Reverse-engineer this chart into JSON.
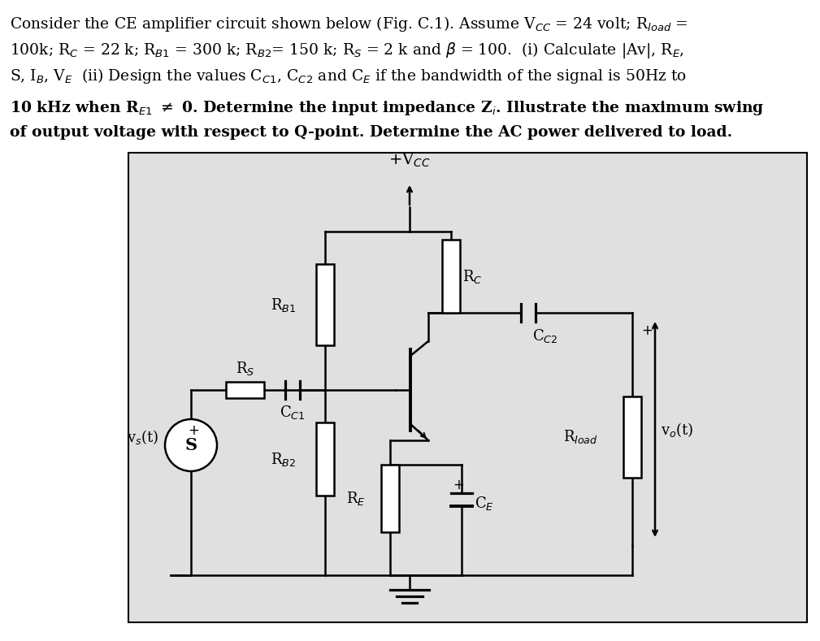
{
  "fig_bg": "#ffffff",
  "circuit_bg": "#e0e0e0",
  "line_color": "#000000",
  "lw": 1.8,
  "header_fs": 13.5,
  "circuit_fs": 13,
  "fig_w": 10.09,
  "fig_h": 7.89,
  "dpi": 100
}
